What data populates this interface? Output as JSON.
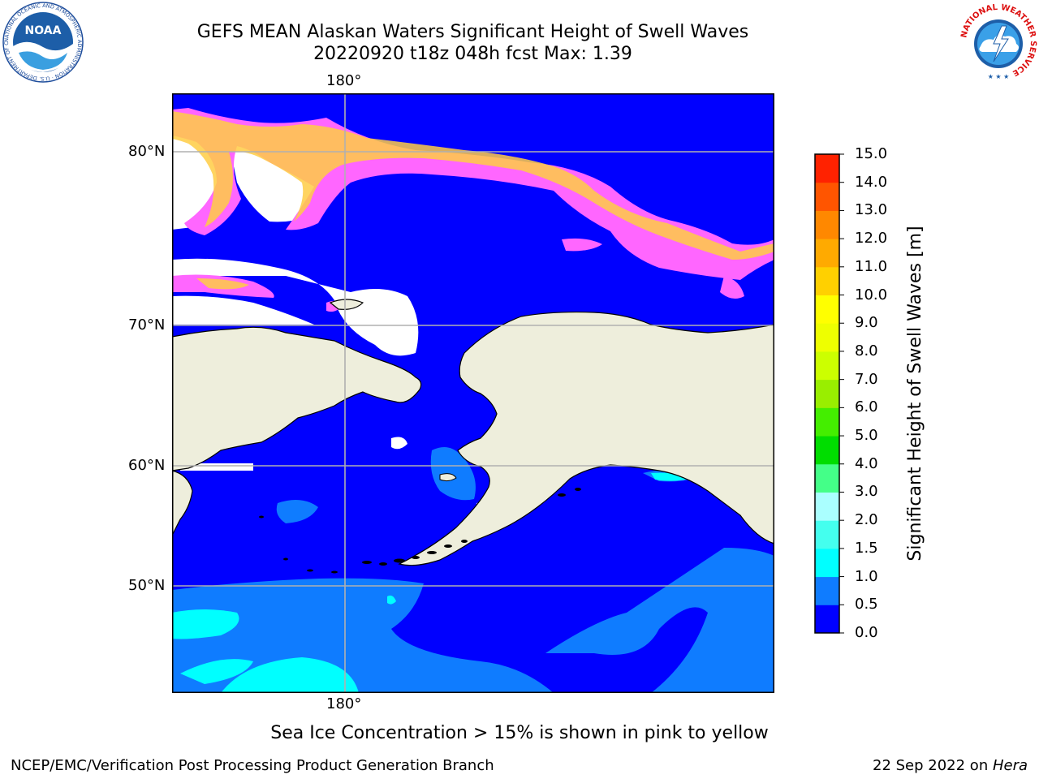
{
  "title": {
    "line1": "GEFS MEAN Alaskan Waters Significant Height of Swell Waves",
    "line2": "20220920 t18z 048h fcst   Max: 1.39"
  },
  "map": {
    "lon_label_top": "180°",
    "lon_label_bottom": "180°",
    "lat_labels": [
      "80°N",
      "70°N",
      "60°N",
      "50°N"
    ],
    "colors": {
      "land": "#eeeedc",
      "ocean_low": "#0000ff",
      "ocean_mid": "#0f7cff",
      "ocean_high": "#00ffff",
      "ice_pink": "#ff66ff",
      "ice_orange": "#ffcc44",
      "grid": "#b0b0b0"
    }
  },
  "colorbar": {
    "label": "Significant Height of Swell Waves [m]",
    "ticks": [
      "15.0",
      "14.0",
      "13.0",
      "12.0",
      "11.0",
      "10.0",
      "9.0",
      "8.0",
      "7.0",
      "6.0",
      "5.0",
      "4.0",
      "3.0",
      "2.0",
      "1.5",
      "1.0",
      "0.5",
      "0.0"
    ],
    "colors_bottom_to_top": [
      "#0000ff",
      "#0f7cff",
      "#00ffff",
      "#44ffee",
      "#aaffff",
      "#44ff88",
      "#00dd00",
      "#44ee00",
      "#99ee00",
      "#ccff00",
      "#eeff00",
      "#ffff00",
      "#ffd000",
      "#ffaa00",
      "#ff8800",
      "#ff5500",
      "#ff2200"
    ]
  },
  "sea_ice_note": "Sea Ice Concentration > 15% is shown in pink to yellow",
  "footer": {
    "left": "NCEP/EMC/Verification Post Processing Product Generation Branch",
    "date": "22 Sep 2022 on ",
    "host": "Hera"
  },
  "logos": {
    "noaa_text": "NOAA",
    "noaa_ring": "NATIONAL OCEANIC AND ATMOSPHERIC ADMINISTRATION · U.S. DEPARTMENT OF COMMERCE",
    "nws_ring": "NATIONAL WEATHER SERVICE"
  }
}
